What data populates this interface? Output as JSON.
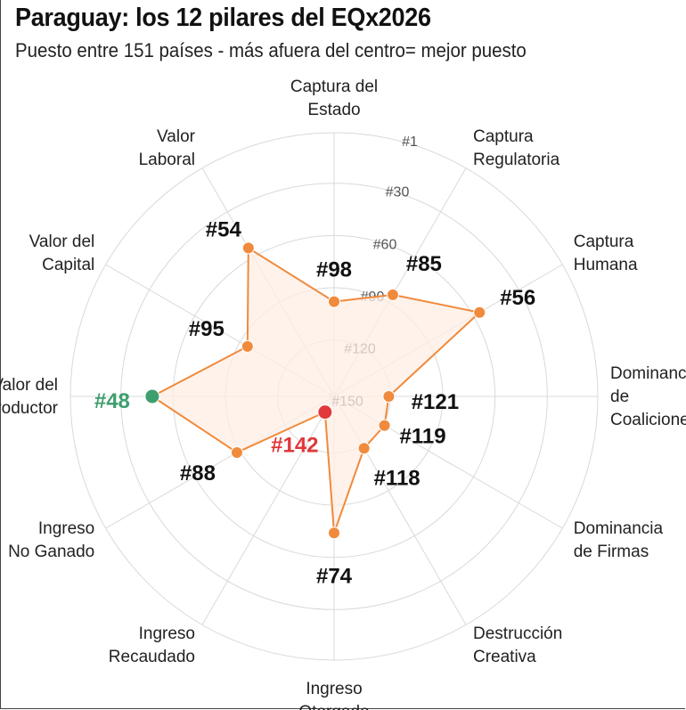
{
  "title": "Paraguay: los 12 pilares del EQx2026",
  "subtitle": "Puesto entre 151 países - más afuera del centro= mejor puesto",
  "colors": {
    "series": "#f08a3c",
    "fill": "#fdeee4",
    "best": "#3f9e6e",
    "worst": "#e0383b",
    "grid": "#d9d9d9",
    "label_dark": "#111111"
  },
  "chart_data": {
    "type": "radar",
    "title": "Paraguay: los 12 pilares del EQx2026",
    "subtitle": "Puesto entre 151 países - más afuera del centro= mejor puesto",
    "scale": {
      "best": 1,
      "worst": 151,
      "reversed": true
    },
    "rings": [
      1,
      30,
      60,
      90,
      120,
      150
    ],
    "ring_labels": [
      "#1",
      "#30",
      "#60",
      "#90",
      "#120",
      "#150"
    ],
    "axes": [
      {
        "lines": [
          "Captura del",
          "Estado"
        ],
        "value": 98,
        "label": "#98",
        "highlight": "none"
      },
      {
        "lines": [
          "Captura",
          "Regulatoria"
        ],
        "value": 85,
        "label": "#85",
        "highlight": "none"
      },
      {
        "lines": [
          "Captura",
          "Humana"
        ],
        "value": 56,
        "label": "#56",
        "highlight": "none"
      },
      {
        "lines": [
          "Dominancia",
          "de",
          "Coaliciones"
        ],
        "value": 121,
        "label": "#121",
        "highlight": "none"
      },
      {
        "lines": [
          "Dominancia",
          "de Firmas"
        ],
        "value": 119,
        "label": "#119",
        "highlight": "none"
      },
      {
        "lines": [
          "Destrucción",
          "Creativa"
        ],
        "value": 118,
        "label": "#118",
        "highlight": "none"
      },
      {
        "lines": [
          "Ingreso",
          "Otorgado"
        ],
        "value": 74,
        "label": "#74",
        "highlight": "none"
      },
      {
        "lines": [
          "Ingreso",
          "Recaudado"
        ],
        "value": 142,
        "label": "#142",
        "highlight": "worst"
      },
      {
        "lines": [
          "Ingreso",
          "No Ganado"
        ],
        "value": 88,
        "label": "#88",
        "highlight": "none"
      },
      {
        "lines": [
          "Valor del",
          "Productor"
        ],
        "value": 48,
        "label": "#48",
        "highlight": "best"
      },
      {
        "lines": [
          "Valor del",
          "Capital"
        ],
        "value": 95,
        "label": "#95",
        "highlight": "none"
      },
      {
        "lines": [
          "Valor",
          "Laboral"
        ],
        "value": 54,
        "label": "#54",
        "highlight": "none"
      }
    ]
  }
}
